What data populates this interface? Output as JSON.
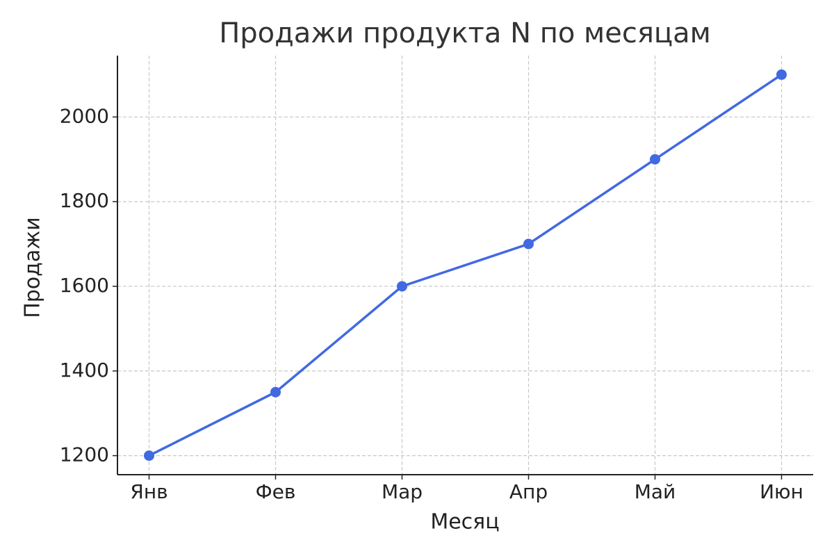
{
  "chart_data": {
    "type": "line",
    "title": "Продажи продукта N по месяцам",
    "x_label": "Месяц",
    "y_label": "Продажи",
    "categories": [
      "Янв",
      "Фев",
      "Мар",
      "Апр",
      "Май",
      "Июн"
    ],
    "series": [
      {
        "name": "Продажи",
        "color": "#4169e1",
        "values": [
          1200,
          1350,
          1600,
          1700,
          1900,
          2100
        ]
      }
    ],
    "ylim": [
      1155,
      2145
    ],
    "yticks": [
      1200,
      1400,
      1600,
      1800,
      2000
    ],
    "grid": true
  }
}
